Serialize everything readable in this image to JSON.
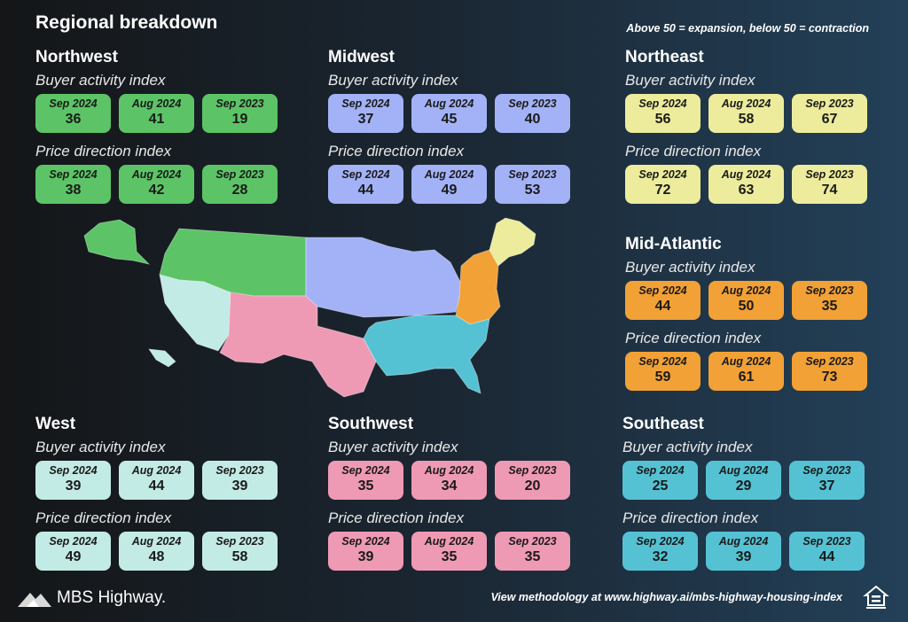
{
  "title": "Regional breakdown",
  "note": "Above 50 = expansion, below 50 = contraction",
  "indices": {
    "buyer": "Buyer activity index",
    "price": "Price direction index"
  },
  "regions": [
    {
      "name": "Northwest",
      "color": "#5cc466",
      "buyer": [
        {
          "label": "Sep 2024",
          "value": "36"
        },
        {
          "label": "Aug 2024",
          "value": "41"
        },
        {
          "label": "Sep 2023",
          "value": "19"
        }
      ],
      "price": [
        {
          "label": "Sep 2024",
          "value": "38"
        },
        {
          "label": "Aug 2024",
          "value": "42"
        },
        {
          "label": "Sep 2023",
          "value": "28"
        }
      ]
    },
    {
      "name": "Midwest",
      "color": "#a3b2f6",
      "buyer": [
        {
          "label": "Sep 2024",
          "value": "37"
        },
        {
          "label": "Aug 2024",
          "value": "45"
        },
        {
          "label": "Sep 2023",
          "value": "40"
        }
      ],
      "price": [
        {
          "label": "Sep 2024",
          "value": "44"
        },
        {
          "label": "Aug 2024",
          "value": "49"
        },
        {
          "label": "Sep 2023",
          "value": "53"
        }
      ]
    },
    {
      "name": "Northeast",
      "color": "#ecec9c",
      "buyer": [
        {
          "label": "Sep 2024",
          "value": "56"
        },
        {
          "label": "Aug 2024",
          "value": "58"
        },
        {
          "label": "Sep 2023",
          "value": "67"
        }
      ],
      "price": [
        {
          "label": "Sep 2024",
          "value": "72"
        },
        {
          "label": "Aug 2024",
          "value": "63"
        },
        {
          "label": "Sep 2023",
          "value": "74"
        }
      ]
    },
    {
      "name": "Mid-Atlantic",
      "color": "#f2a136",
      "buyer": [
        {
          "label": "Sep 2024",
          "value": "44"
        },
        {
          "label": "Aug 2024",
          "value": "50"
        },
        {
          "label": "Sep 2023",
          "value": "35"
        }
      ],
      "price": [
        {
          "label": "Sep 2024",
          "value": "59"
        },
        {
          "label": "Aug 2024",
          "value": "61"
        },
        {
          "label": "Sep 2023",
          "value": "73"
        }
      ]
    },
    {
      "name": "West",
      "color": "#c3ebe5",
      "buyer": [
        {
          "label": "Sep 2024",
          "value": "39"
        },
        {
          "label": "Aug 2024",
          "value": "44"
        },
        {
          "label": "Sep 2023",
          "value": "39"
        }
      ],
      "price": [
        {
          "label": "Sep 2024",
          "value": "49"
        },
        {
          "label": "Aug 2024",
          "value": "48"
        },
        {
          "label": "Sep 2023",
          "value": "58"
        }
      ]
    },
    {
      "name": "Southwest",
      "color": "#ef9ab4",
      "buyer": [
        {
          "label": "Sep 2024",
          "value": "35"
        },
        {
          "label": "Aug 2024",
          "value": "34"
        },
        {
          "label": "Sep 2023",
          "value": "20"
        }
      ],
      "price": [
        {
          "label": "Sep 2024",
          "value": "39"
        },
        {
          "label": "Aug 2024",
          "value": "35"
        },
        {
          "label": "Sep 2023",
          "value": "35"
        }
      ]
    },
    {
      "name": "Southeast",
      "color": "#55c2d4",
      "buyer": [
        {
          "label": "Sep 2024",
          "value": "25"
        },
        {
          "label": "Aug 2024",
          "value": "29"
        },
        {
          "label": "Sep 2023",
          "value": "37"
        }
      ],
      "price": [
        {
          "label": "Sep 2024",
          "value": "32"
        },
        {
          "label": "Aug 2024",
          "value": "39"
        },
        {
          "label": "Sep 2023",
          "value": "44"
        }
      ]
    }
  ],
  "footer": {
    "methodology": "View methodology at www.highway.ai/mbs-highway-housing-index",
    "brand": "MBS Highway."
  },
  "icons": {
    "logo": "mountain-logo-icon",
    "equal_housing": "equal-housing-icon"
  }
}
